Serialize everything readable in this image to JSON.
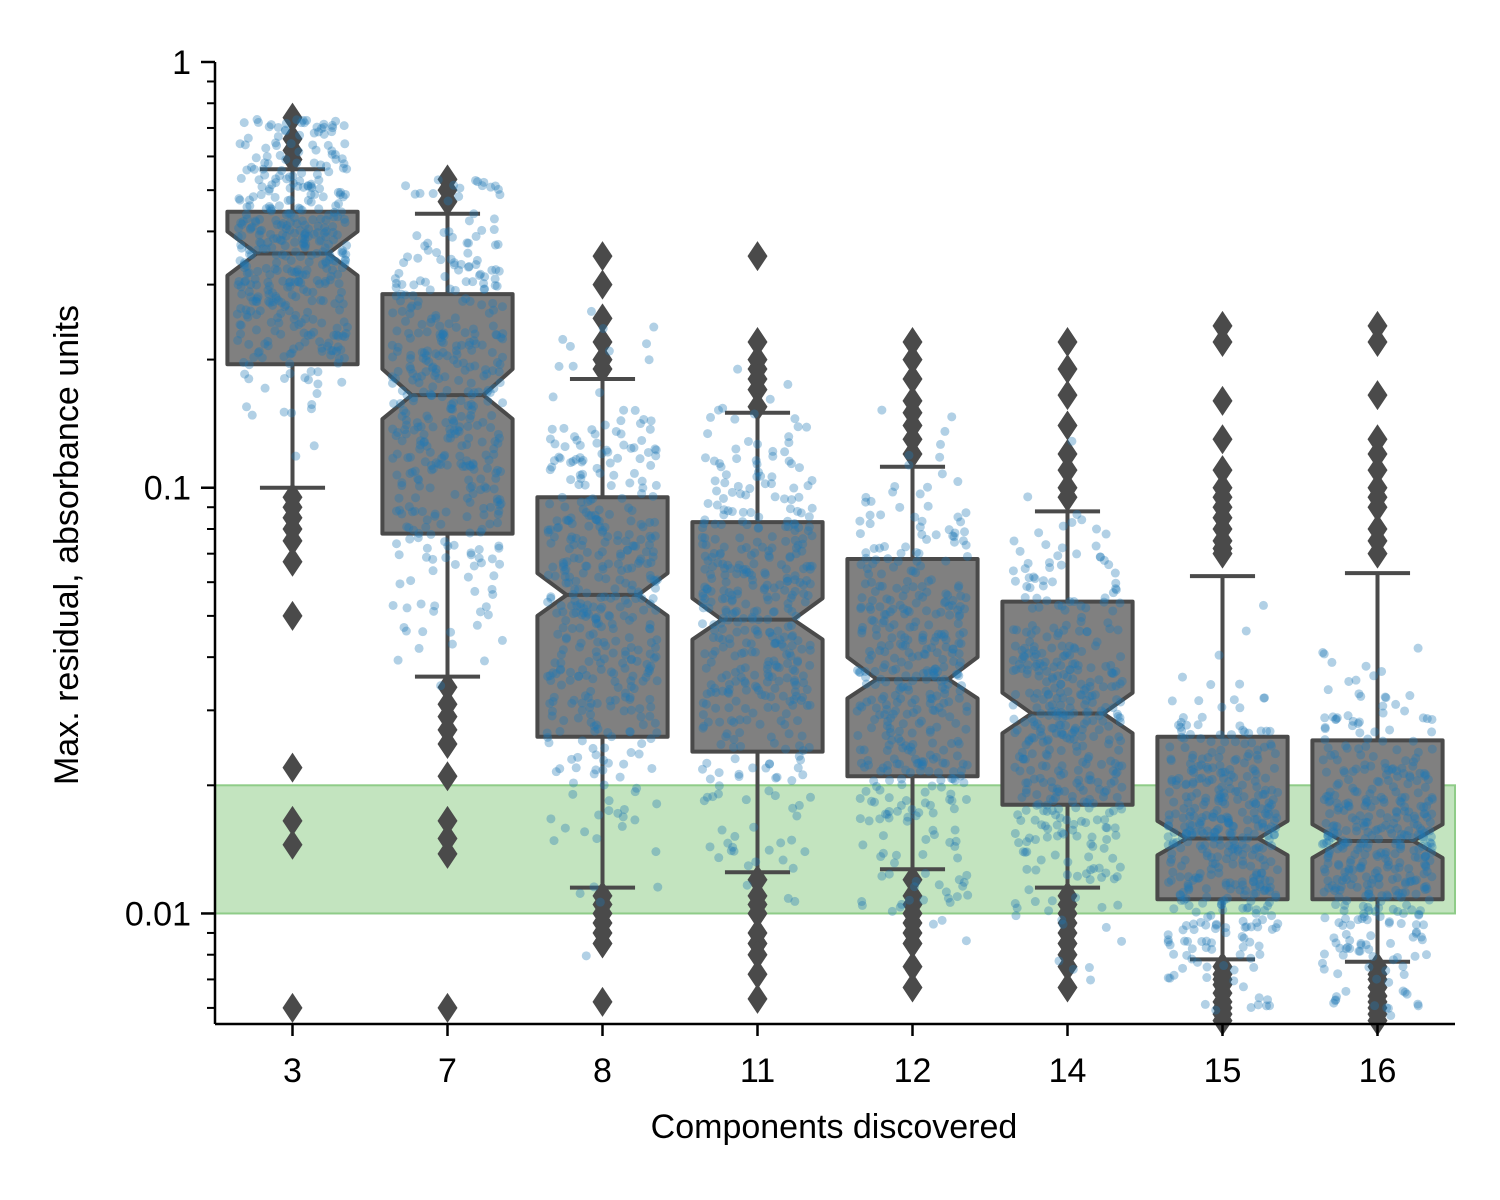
{
  "chart_data": {
    "type": "box",
    "xlabel": "Components discovered",
    "ylabel": "Max. residual, absorbance units",
    "yscale": "log",
    "ylim": [
      0.0055,
      1.0
    ],
    "yticks": [
      {
        "value": 1,
        "label": "1"
      },
      {
        "value": 0.1,
        "label": "0.1"
      },
      {
        "value": 0.01,
        "label": "0.01"
      }
    ],
    "categories": [
      "3",
      "7",
      "8",
      "11",
      "12",
      "14",
      "15",
      "16"
    ],
    "boxes": [
      {
        "category": "3",
        "whisker_low": 0.1,
        "q1": 0.195,
        "median": 0.355,
        "q3": 0.445,
        "whisker_high": 0.56,
        "notch_low": 0.315,
        "notch_high": 0.4,
        "outliers": [
          0.74,
          0.66,
          0.62,
          0.59,
          0.095,
          0.09,
          0.085,
          0.08,
          0.075,
          0.067,
          0.05,
          0.022,
          0.0165,
          0.0145,
          0.006
        ]
      },
      {
        "category": "7",
        "whisker_low": 0.036,
        "q1": 0.078,
        "median": 0.165,
        "q3": 0.285,
        "whisker_high": 0.44,
        "notch_low": 0.145,
        "notch_high": 0.19,
        "outliers": [
          0.53,
          0.5,
          0.47,
          0.034,
          0.031,
          0.029,
          0.027,
          0.025,
          0.021,
          0.0165,
          0.015,
          0.0138,
          0.006
        ]
      },
      {
        "category": "8",
        "whisker_low": 0.0115,
        "q1": 0.026,
        "median": 0.056,
        "q3": 0.095,
        "whisker_high": 0.18,
        "notch_low": 0.05,
        "notch_high": 0.063,
        "outliers": [
          0.35,
          0.3,
          0.25,
          0.22,
          0.2,
          0.19,
          0.011,
          0.0105,
          0.01,
          0.0095,
          0.009,
          0.0085,
          0.0062
        ]
      },
      {
        "category": "11",
        "whisker_low": 0.0125,
        "q1": 0.024,
        "median": 0.049,
        "q3": 0.083,
        "whisker_high": 0.15,
        "notch_low": 0.044,
        "notch_high": 0.055,
        "outliers": [
          0.35,
          0.22,
          0.2,
          0.19,
          0.18,
          0.17,
          0.155,
          0.012,
          0.011,
          0.0105,
          0.01,
          0.009,
          0.0085,
          0.008,
          0.0072,
          0.0063
        ]
      },
      {
        "category": "12",
        "whisker_low": 0.0127,
        "q1": 0.021,
        "median": 0.0355,
        "q3": 0.068,
        "whisker_high": 0.112,
        "notch_low": 0.032,
        "notch_high": 0.04,
        "outliers": [
          0.22,
          0.2,
          0.18,
          0.16,
          0.15,
          0.14,
          0.13,
          0.12,
          0.012,
          0.011,
          0.0105,
          0.01,
          0.0095,
          0.009,
          0.0085,
          0.0075,
          0.0067
        ]
      },
      {
        "category": "14",
        "whisker_low": 0.0115,
        "q1": 0.018,
        "median": 0.0295,
        "q3": 0.054,
        "whisker_high": 0.088,
        "notch_low": 0.0265,
        "notch_high": 0.033,
        "outliers": [
          0.22,
          0.19,
          0.165,
          0.14,
          0.12,
          0.11,
          0.1,
          0.095,
          0.011,
          0.0105,
          0.01,
          0.0095,
          0.009,
          0.0085,
          0.008,
          0.0075,
          0.0067
        ]
      },
      {
        "category": "15",
        "whisker_low": 0.0078,
        "q1": 0.0108,
        "median": 0.015,
        "q3": 0.026,
        "whisker_high": 0.062,
        "notch_low": 0.0137,
        "notch_high": 0.0165,
        "outliers": [
          0.24,
          0.22,
          0.16,
          0.13,
          0.11,
          0.1,
          0.095,
          0.09,
          0.085,
          0.08,
          0.075,
          0.072,
          0.07,
          0.0075,
          0.0072,
          0.007,
          0.0068,
          0.0065,
          0.0062,
          0.006,
          0.0058,
          0.0056
        ]
      },
      {
        "category": "16",
        "whisker_low": 0.0077,
        "q1": 0.0108,
        "median": 0.0148,
        "q3": 0.0255,
        "whisker_high": 0.063,
        "notch_low": 0.0135,
        "notch_high": 0.0162,
        "outliers": [
          0.24,
          0.22,
          0.165,
          0.13,
          0.12,
          0.11,
          0.1,
          0.095,
          0.09,
          0.08,
          0.075,
          0.07,
          0.0075,
          0.0072,
          0.007,
          0.0067,
          0.0064,
          0.0062,
          0.006,
          0.0058,
          0.0056
        ]
      }
    ],
    "shaded_band": {
      "y_from": 0.01,
      "y_to": 0.02,
      "color": "#a9d9a4"
    },
    "box_color": "#808080",
    "box_edge_color": "#4a4a4a",
    "strip_color": "#1f77b4",
    "strip_points_per_category": 420,
    "grid": false,
    "legend": "none"
  }
}
